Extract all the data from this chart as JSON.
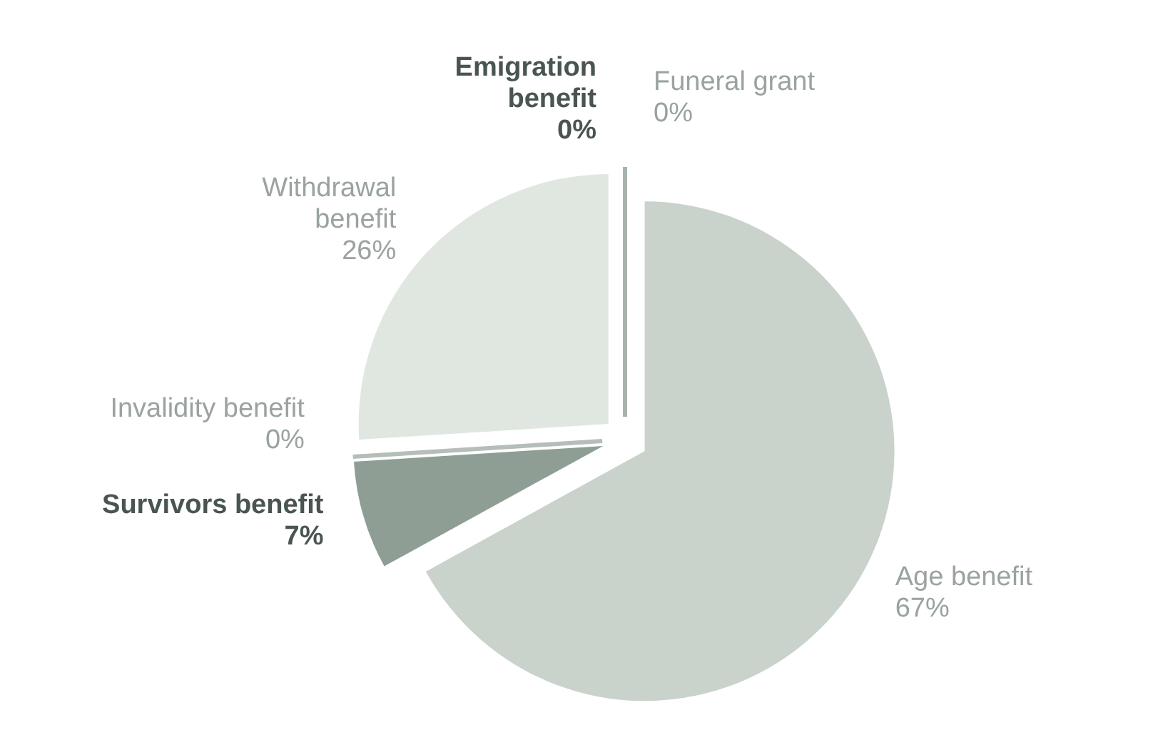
{
  "chart_data": {
    "type": "pie",
    "categories": [
      "Age benefit",
      "Survivors benefit",
      "Invalidity benefit",
      "Withdrawal benefit",
      "Emigration benefit",
      "Funeral grant"
    ],
    "values": [
      67,
      7,
      0,
      26,
      0,
      0
    ],
    "colors": [
      "#c9d2cb",
      "#8e9e94",
      "#b5beb8",
      "#dfe7e0",
      "#6f7f75",
      "#a8b3ab"
    ],
    "value_labels": [
      "67%",
      "7%",
      "0%",
      "26%",
      "0%",
      "0%"
    ]
  }
}
